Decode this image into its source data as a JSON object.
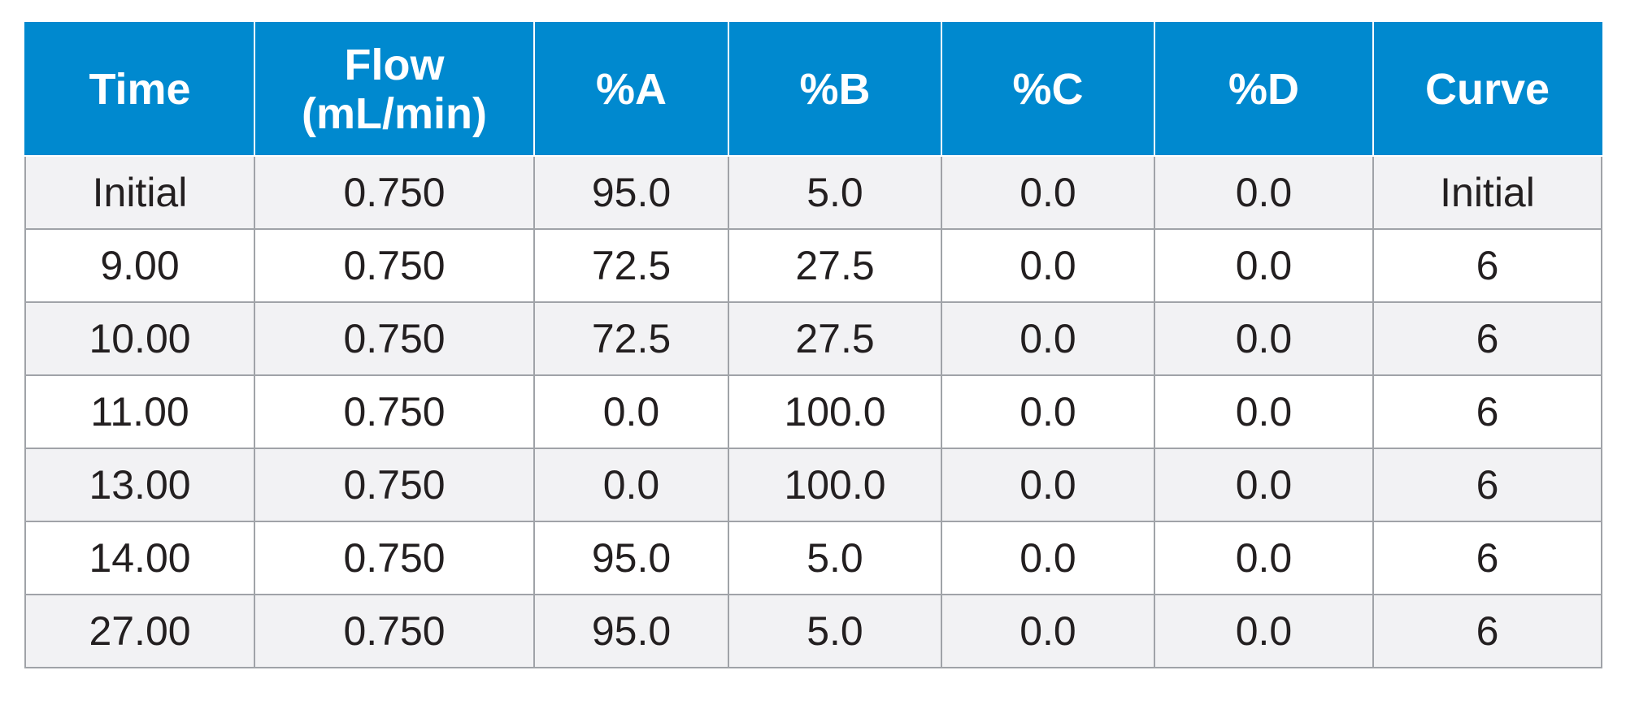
{
  "table": {
    "headers": [
      "Time",
      "Flow\n(mL/min)",
      "%A",
      "%B",
      "%C",
      "%D",
      "Curve"
    ],
    "header_lines": {
      "flow_line1": "Flow",
      "flow_line2": "(mL/min)"
    },
    "rows": [
      [
        "Initial",
        "0.750",
        "95.0",
        "5.0",
        "0.0",
        "0.0",
        "Initial"
      ],
      [
        "9.00",
        "0.750",
        "72.5",
        "27.5",
        "0.0",
        "0.0",
        "6"
      ],
      [
        "10.00",
        "0.750",
        "72.5",
        "27.5",
        "0.0",
        "0.0",
        "6"
      ],
      [
        "11.00",
        "0.750",
        "0.0",
        "100.0",
        "0.0",
        "0.0",
        "6"
      ],
      [
        "13.00",
        "0.750",
        "0.0",
        "100.0",
        "0.0",
        "0.0",
        "6"
      ],
      [
        "14.00",
        "0.750",
        "95.0",
        "5.0",
        "0.0",
        "0.0",
        "6"
      ],
      [
        "27.00",
        "0.750",
        "95.0",
        "5.0",
        "0.0",
        "0.0",
        "6"
      ]
    ]
  },
  "colors": {
    "header_bg": "#0089cf",
    "header_text": "#ffffff",
    "row_alt_bg": "#f2f2f4",
    "row_bg": "#ffffff",
    "grid": "#a0a3a8",
    "body_text": "#231f20"
  }
}
